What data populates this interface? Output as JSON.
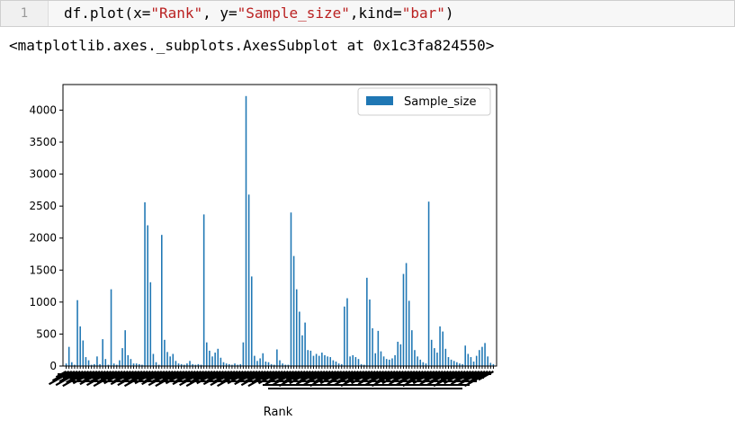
{
  "cell": {
    "line_number": "1",
    "code_prefix": "df.plot(x=",
    "code_x": "\"Rank\"",
    "code_mid": ", y=",
    "code_y": "\"Sample_size\"",
    "code_mid2": ",kind=",
    "code_kind": "\"bar\"",
    "code_suffix": ")"
  },
  "output": {
    "repr": "<matplotlib.axes._subplots.AxesSubplot at 0x1c3fa824550>"
  },
  "chart_data": {
    "type": "bar",
    "xlabel": "Rank",
    "ylabel": "",
    "ylim": [
      0,
      4400
    ],
    "yticks": [
      0,
      500,
      1000,
      1500,
      2000,
      2500,
      3000,
      3500,
      4000
    ],
    "legend": "top-right",
    "bar_color": "#1f77b4",
    "series": [
      {
        "name": "Sample_size",
        "values": [
          40,
          300,
          60,
          20,
          1030,
          620,
          400,
          140,
          90,
          20,
          30,
          150,
          30,
          420,
          110,
          20,
          1200,
          40,
          20,
          90,
          280,
          560,
          170,
          110,
          40,
          40,
          30,
          20,
          2560,
          2200,
          1310,
          190,
          60,
          20,
          2050,
          410,
          220,
          150,
          190,
          80,
          40,
          30,
          20,
          40,
          80,
          30,
          20,
          30,
          20,
          2370,
          370,
          240,
          150,
          210,
          270,
          130,
          60,
          40,
          30,
          20,
          40,
          20,
          30,
          370,
          4220,
          2680,
          1400,
          160,
          80,
          120,
          200,
          70,
          60,
          30,
          20,
          260,
          90,
          40,
          20,
          20,
          2400,
          1720,
          1200,
          850,
          480,
          680,
          250,
          240,
          160,
          190,
          160,
          210,
          170,
          150,
          140,
          90,
          70,
          40,
          30,
          930,
          1060,
          150,
          170,
          140,
          110,
          30,
          20,
          1380,
          1040,
          590,
          200,
          550,
          230,
          150,
          110,
          100,
          120,
          170,
          380,
          340,
          1440,
          1610,
          1020,
          560,
          250,
          150,
          100,
          60,
          40,
          2570,
          410,
          280,
          210,
          620,
          540,
          270,
          140,
          100,
          80,
          60,
          40,
          30,
          320,
          190,
          140,
          70,
          160,
          250,
          300,
          360,
          150,
          50,
          30
        ]
      }
    ]
  }
}
